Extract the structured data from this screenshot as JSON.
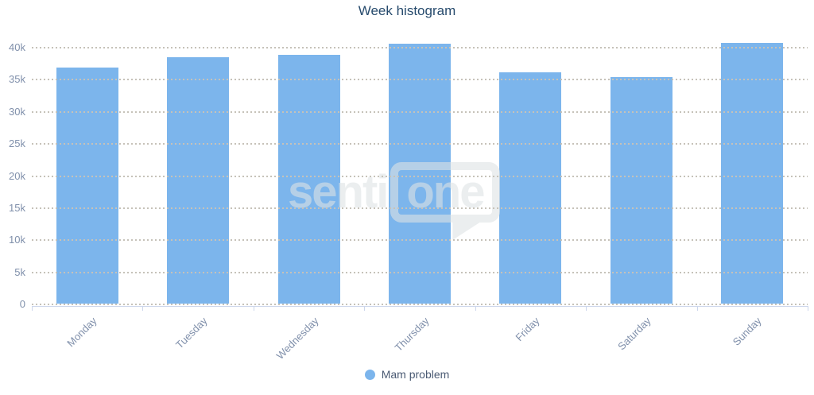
{
  "title": "Week histogram",
  "watermark": {
    "prefix": "senti",
    "boxed": "one"
  },
  "legend": {
    "items": [
      {
        "label": "Mam problem",
        "color": "#7cb5ec"
      }
    ]
  },
  "chart_data": {
    "type": "bar",
    "title": "Week histogram",
    "categories": [
      "Monday",
      "Tuesday",
      "Wednesday",
      "Thursday",
      "Friday",
      "Saturday",
      "Sunday"
    ],
    "series": [
      {
        "name": "Mam problem",
        "color": "#7cb5ec",
        "values": [
          37000,
          38600,
          39000,
          40700,
          36300,
          35500,
          40900
        ]
      }
    ],
    "ylim": [
      0,
      40000
    ],
    "ytick_interval": 5000,
    "ytick_labels": [
      "0",
      "5k",
      "10k",
      "15k",
      "20k",
      "25k",
      "30k",
      "35k",
      "40k"
    ],
    "grid": "dotted-horizontal",
    "legend_position": "bottom",
    "x_label_rotation": -45,
    "xlabel": "",
    "ylabel": ""
  },
  "colors": {
    "bar": "#7cb5ec",
    "title_text": "#274b6d",
    "axis_label_text": "#8090ab",
    "legend_text": "#4a5a73",
    "axis_line": "#ccd6eb",
    "gridline_dot": "#c6c2b9"
  }
}
